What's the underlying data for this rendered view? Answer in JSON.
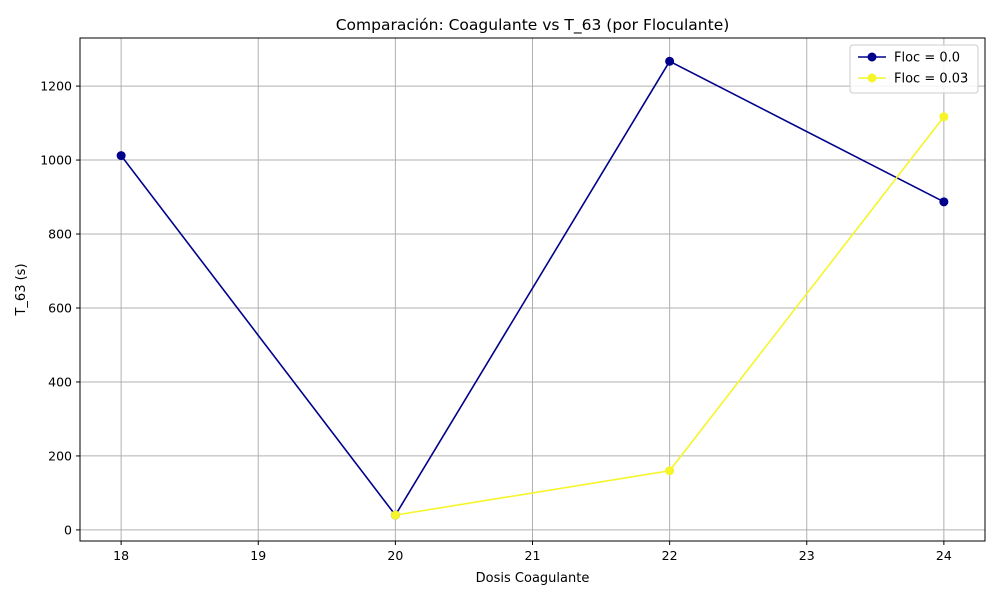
{
  "chart_data": {
    "type": "line",
    "title": "Comparación: Coagulante vs T_63 (por Floculante)",
    "xlabel": "Dosis Coagulante",
    "ylabel": "T_63 (s)",
    "xlim": [
      17.7,
      24.3
    ],
    "ylim": [
      -30,
      1330
    ],
    "xticks": [
      18,
      19,
      20,
      21,
      22,
      23,
      24
    ],
    "yticks": [
      0,
      200,
      400,
      600,
      800,
      1000,
      1200
    ],
    "grid": true,
    "legend_position": "upper right",
    "series": [
      {
        "name": "Floc = 0.0",
        "color": "#00008b",
        "marker": "circle",
        "x": [
          18,
          20,
          22,
          24
        ],
        "y": [
          1012,
          40,
          1267,
          887
        ]
      },
      {
        "name": "Floc = 0.03",
        "color": "#f5f52a",
        "marker": "circle",
        "x": [
          20,
          22,
          24
        ],
        "y": [
          40,
          160,
          1117
        ]
      }
    ]
  }
}
